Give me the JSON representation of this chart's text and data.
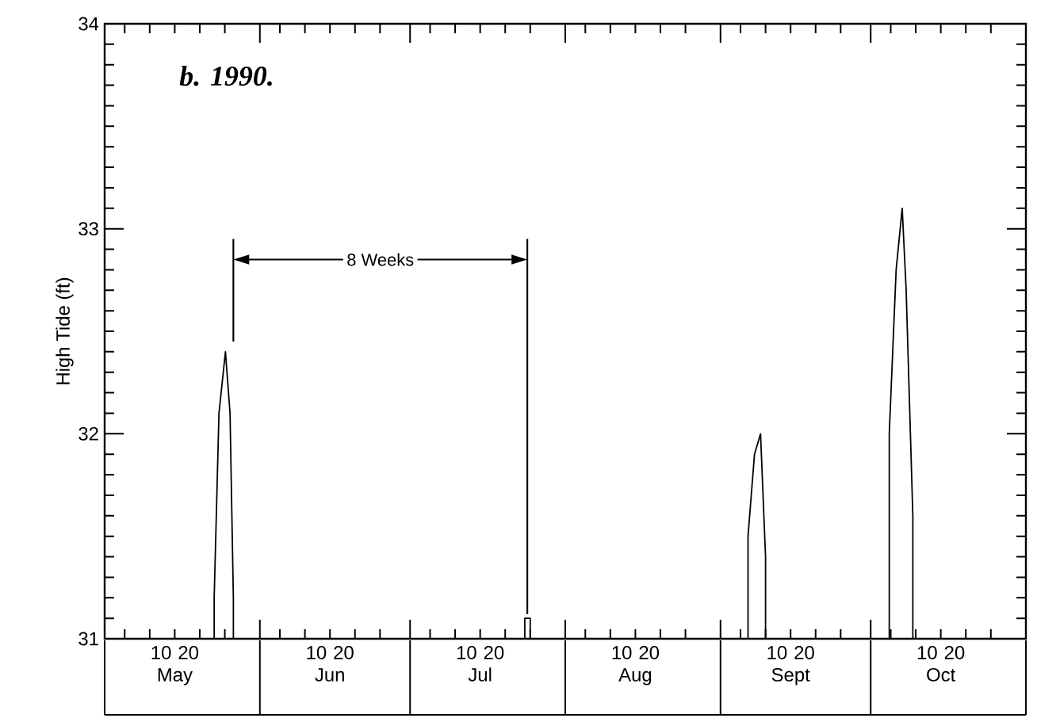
{
  "chart_data": {
    "type": "line",
    "title": "b. 1990.",
    "ylabel": "High Tide (ft)",
    "annotations": [
      "8 Weeks"
    ],
    "x": [
      "1990-05-22T21:00",
      "1990-05-22T21:00",
      "1990-05-23T20:00",
      "1990-05-25T03:00",
      "1990-05-26T01:00",
      "1990-05-26T17:00",
      "1990-05-26T17:00",
      "1990-07-23T22:00",
      "1990-07-23T22:00",
      "1990-07-25T00:00",
      "1990-07-25T00:00",
      "1990-09-06T12:00",
      "1990-09-06T12:00",
      "1990-09-07T19:00",
      "1990-09-09T00:00",
      "1990-09-10T00:00",
      "1990-09-10T00:00",
      "1990-10-04T17:00",
      "1990-10-04T17:00",
      "1990-10-06T02:00",
      "1990-10-07T07:00",
      "1990-10-08T02:00",
      "1990-10-09T10:00",
      "1990-10-09T10:00"
    ],
    "series": [
      {
        "color": "#000000",
        "values": [
          31,
          31.2,
          32.1,
          32.4,
          32.1,
          31.2,
          31,
          31,
          31.1,
          31.1,
          31,
          31,
          31.5,
          31.9,
          32.0,
          31.4,
          31,
          31,
          32.0,
          32.8,
          33.1,
          32.7,
          31.6,
          31
        ]
      }
    ],
    "xlim": [
      "1990-05-01",
      "1990-11-01"
    ],
    "xticks": [
      {
        "value": "1990-05-01",
        "label": null
      },
      {
        "value": "1990-05-05",
        "label": null
      },
      {
        "value": "1990-05-10",
        "label": null
      },
      {
        "value": "1990-05-15",
        "label": "10 20 May"
      },
      {
        "value": "1990-05-20",
        "label": null
      },
      {
        "value": "1990-05-25",
        "label": null
      },
      {
        "value": "1990-06-01",
        "label": null
      },
      {
        "value": "1990-06-05",
        "label": null
      },
      {
        "value": "1990-06-10",
        "label": null
      },
      {
        "value": "1990-06-15",
        "label": "10 20 Jun"
      },
      {
        "value": "1990-06-20",
        "label": null
      },
      {
        "value": "1990-06-25",
        "label": null
      },
      {
        "value": "1990-07-01",
        "label": null
      },
      {
        "value": "1990-07-05",
        "label": null
      },
      {
        "value": "1990-07-10",
        "label": null
      },
      {
        "value": "1990-07-15",
        "label": "10 20 Jul"
      },
      {
        "value": "1990-07-20",
        "label": null
      },
      {
        "value": "1990-07-25",
        "label": null
      },
      {
        "value": "1990-08-01",
        "label": null
      },
      {
        "value": "1990-08-05",
        "label": null
      },
      {
        "value": "1990-08-10",
        "label": null
      },
      {
        "value": "1990-08-15",
        "label": "10 20 Aug"
      },
      {
        "value": "1990-08-20",
        "label": null
      },
      {
        "value": "1990-08-25",
        "label": null
      },
      {
        "value": "1990-09-01",
        "label": null
      },
      {
        "value": "1990-09-05",
        "label": null
      },
      {
        "value": "1990-09-10",
        "label": null
      },
      {
        "value": "1990-09-15",
        "label": "10 20 Sept"
      },
      {
        "value": "1990-09-20",
        "label": null
      },
      {
        "value": "1990-09-25",
        "label": null
      },
      {
        "value": "1990-10-01",
        "label": null
      },
      {
        "value": "1990-10-05",
        "label": null
      },
      {
        "value": "1990-10-10",
        "label": null
      },
      {
        "value": "1990-10-15",
        "label": "10 20 Oct"
      },
      {
        "value": "1990-10-20",
        "label": null
      },
      {
        "value": "1990-10-25",
        "label": null
      },
      {
        "value": "1990-11-01",
        "label": null
      }
    ],
    "ylim": [
      31,
      34
    ],
    "yticks": [
      31,
      {
        "value": 31.1,
        "label": null
      },
      {
        "value": 31.2,
        "label": null
      },
      {
        "value": 31.3,
        "label": null
      },
      {
        "value": 31.4,
        "label": null
      },
      {
        "value": 31.5,
        "label": null
      },
      {
        "value": 31.6,
        "label": null
      },
      {
        "value": 31.7,
        "label": null
      },
      {
        "value": 31.8,
        "label": null
      },
      {
        "value": 31.9,
        "label": null
      },
      32,
      {
        "value": 32.1,
        "label": null
      },
      {
        "value": 32.2,
        "label": null
      },
      {
        "value": 32.3,
        "label": null
      },
      {
        "value": 32.4,
        "label": null
      },
      {
        "value": 32.5,
        "label": null
      },
      {
        "value": 32.6,
        "label": null
      },
      {
        "value": 32.7,
        "label": null
      },
      {
        "value": 32.8,
        "label": null
      },
      {
        "value": 32.9,
        "label": null
      },
      33,
      {
        "value": 33.1,
        "label": null
      },
      {
        "value": 33.2,
        "label": null
      },
      {
        "value": 33.3,
        "label": null
      },
      {
        "value": 33.4,
        "label": null
      },
      {
        "value": 33.5,
        "label": null
      },
      {
        "value": 33.6,
        "label": null
      },
      {
        "value": 33.7,
        "label": null
      },
      {
        "value": 33.8,
        "label": null
      },
      {
        "value": 33.9,
        "label": null
      },
      34
    ],
    "ref_lines": [
      {
        "axis": "x",
        "value": "1990-07-24T10:00",
        "color": "#000000"
      }
    ],
    "marker": "none",
    "line_style": "solid",
    "legend": false,
    "grid": false
  }
}
